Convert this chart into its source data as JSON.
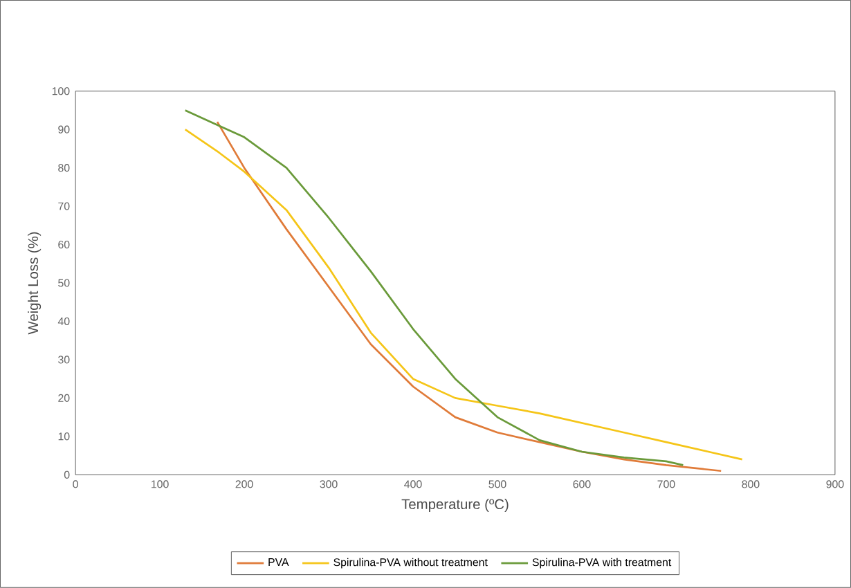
{
  "chart_data": {
    "type": "line",
    "xlabel": "Temperature (ºC)",
    "ylabel": "Weight Loss (%)",
    "xlim": [
      0,
      900
    ],
    "ylim": [
      0,
      100
    ],
    "xticks": [
      0,
      100,
      200,
      300,
      400,
      500,
      600,
      700,
      800,
      900
    ],
    "yticks": [
      0,
      10,
      20,
      30,
      40,
      50,
      60,
      70,
      80,
      90,
      100
    ],
    "legend": "bottom",
    "grid": false,
    "marker": "none",
    "line_style": "solid",
    "series": [
      {
        "name": "PVA",
        "color": "#e07b39",
        "x": [
          168,
          200,
          250,
          300,
          350,
          400,
          450,
          500,
          550,
          600,
          650,
          700,
          765
        ],
        "values": [
          92,
          80,
          64,
          49,
          34,
          23,
          15,
          11,
          8.5,
          6,
          4,
          2.5,
          1
        ]
      },
      {
        "name": "Spirulina-PVA without treatment",
        "color": "#f5c518",
        "x": [
          130,
          170,
          200,
          250,
          300,
          350,
          400,
          450,
          500,
          550,
          600,
          650,
          700,
          750,
          790
        ],
        "values": [
          90,
          84,
          79,
          69,
          54,
          37,
          25,
          20,
          18,
          16,
          13.5,
          11,
          8.5,
          6,
          4
        ]
      },
      {
        "name": "Spirulina-PVA with treatment",
        "color": "#6a9a3a",
        "x": [
          130,
          170,
          200,
          250,
          300,
          350,
          400,
          450,
          500,
          550,
          600,
          650,
          700,
          720
        ],
        "values": [
          95,
          91,
          88,
          80,
          67,
          53,
          38,
          25,
          15,
          9,
          6,
          4.5,
          3.5,
          2.5
        ]
      }
    ]
  }
}
